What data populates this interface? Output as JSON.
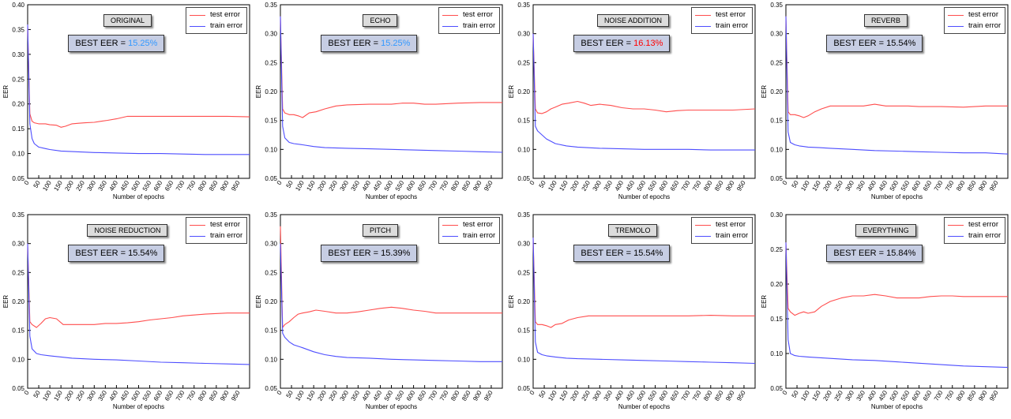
{
  "colors": {
    "test": "#ff4d4d",
    "train": "#4d4dff",
    "highlight_blue": "#3399ff",
    "highlight_red": "#ff0000"
  },
  "legend": {
    "test": "test error",
    "train": "train error"
  },
  "eer_prefix": "BEST EER = ",
  "chart_data": [
    {
      "type": "line",
      "title": "ORIGINAL",
      "best_eer": "15.25%",
      "best_eer_color": "blue",
      "xlabel": "Number of epochs",
      "ylabel": "EER",
      "ylim": [
        0.05,
        0.4
      ],
      "yticks": [
        "0.05",
        "0.10",
        "0.15",
        "0.20",
        "0.25",
        "0.30",
        "0.35",
        "0.40"
      ],
      "xlim": [
        0,
        1000
      ],
      "xticks": [
        0,
        50,
        100,
        150,
        200,
        250,
        300,
        350,
        400,
        450,
        500,
        550,
        600,
        650,
        700,
        750,
        800,
        850,
        900,
        950
      ],
      "series": [
        {
          "name": "test error",
          "x": [
            0,
            10,
            20,
            30,
            50,
            80,
            100,
            130,
            150,
            170,
            200,
            230,
            260,
            300,
            330,
            360,
            400,
            450,
            500,
            600,
            700,
            800,
            900,
            1000
          ],
          "y": [
            0.36,
            0.18,
            0.165,
            0.162,
            0.16,
            0.16,
            0.158,
            0.157,
            0.153,
            0.155,
            0.16,
            0.161,
            0.162,
            0.163,
            0.165,
            0.167,
            0.17,
            0.175,
            0.175,
            0.175,
            0.175,
            0.175,
            0.175,
            0.174
          ]
        },
        {
          "name": "train error",
          "x": [
            0,
            10,
            20,
            30,
            50,
            80,
            100,
            150,
            200,
            300,
            400,
            500,
            600,
            700,
            800,
            900,
            1000
          ],
          "y": [
            0.36,
            0.16,
            0.13,
            0.12,
            0.113,
            0.11,
            0.108,
            0.105,
            0.104,
            0.102,
            0.101,
            0.1,
            0.1,
            0.099,
            0.098,
            0.098,
            0.098
          ]
        }
      ]
    },
    {
      "type": "line",
      "title": "ECHO",
      "best_eer": "15.25%",
      "best_eer_color": "blue",
      "xlabel": "Number of epochs",
      "ylabel": "EER",
      "ylim": [
        0.05,
        0.35
      ],
      "yticks": [
        "0.05",
        "0.10",
        "0.15",
        "0.20",
        "0.25",
        "0.30",
        "0.35"
      ],
      "xlim": [
        0,
        1000
      ],
      "xticks": [
        0,
        50,
        100,
        150,
        200,
        250,
        300,
        350,
        400,
        450,
        500,
        550,
        600,
        650,
        700,
        750,
        800,
        850,
        900,
        950
      ],
      "series": [
        {
          "name": "test error",
          "x": [
            0,
            10,
            20,
            40,
            60,
            80,
            100,
            130,
            160,
            200,
            250,
            300,
            400,
            500,
            550,
            600,
            650,
            700,
            800,
            900,
            1000
          ],
          "y": [
            0.33,
            0.17,
            0.163,
            0.16,
            0.16,
            0.158,
            0.155,
            0.163,
            0.165,
            0.17,
            0.175,
            0.177,
            0.178,
            0.178,
            0.18,
            0.18,
            0.178,
            0.178,
            0.18,
            0.181,
            0.181
          ]
        },
        {
          "name": "train error",
          "x": [
            0,
            10,
            20,
            40,
            60,
            100,
            150,
            200,
            300,
            400,
            500,
            600,
            700,
            800,
            900,
            1000
          ],
          "y": [
            0.33,
            0.14,
            0.12,
            0.112,
            0.11,
            0.108,
            0.105,
            0.103,
            0.102,
            0.101,
            0.1,
            0.099,
            0.098,
            0.097,
            0.096,
            0.095
          ]
        }
      ]
    },
    {
      "type": "line",
      "title": "NOISE ADDITION",
      "best_eer": "16.13%",
      "best_eer_color": "red",
      "xlabel": "Number of epochs",
      "ylabel": "EER",
      "ylim": [
        0.05,
        0.35
      ],
      "yticks": [
        "0.05",
        "0.10",
        "0.15",
        "0.20",
        "0.25",
        "0.30",
        "0.35"
      ],
      "xlim": [
        0,
        1000
      ],
      "xticks": [
        0,
        50,
        100,
        150,
        200,
        250,
        300,
        350,
        400,
        450,
        500,
        550,
        600,
        650,
        700,
        750,
        800,
        850,
        900,
        950
      ],
      "series": [
        {
          "name": "test error",
          "x": [
            0,
            10,
            20,
            40,
            60,
            80,
            100,
            130,
            160,
            200,
            230,
            260,
            300,
            350,
            400,
            450,
            500,
            550,
            600,
            650,
            700,
            800,
            900,
            1000
          ],
          "y": [
            0.3,
            0.17,
            0.163,
            0.162,
            0.165,
            0.17,
            0.173,
            0.178,
            0.18,
            0.183,
            0.18,
            0.176,
            0.178,
            0.176,
            0.172,
            0.17,
            0.17,
            0.168,
            0.165,
            0.167,
            0.168,
            0.168,
            0.168,
            0.17
          ]
        },
        {
          "name": "train error",
          "x": [
            0,
            10,
            20,
            40,
            60,
            100,
            150,
            200,
            300,
            400,
            500,
            600,
            700,
            800,
            900,
            1000
          ],
          "y": [
            0.3,
            0.14,
            0.132,
            0.125,
            0.118,
            0.11,
            0.106,
            0.104,
            0.102,
            0.101,
            0.1,
            0.1,
            0.1,
            0.099,
            0.099,
            0.099
          ]
        }
      ]
    },
    {
      "type": "line",
      "title": "REVERB",
      "best_eer": "15.54%",
      "best_eer_color": "black",
      "xlabel": "Number of epochs",
      "ylabel": "EER",
      "ylim": [
        0.05,
        0.35
      ],
      "yticks": [
        "0.05",
        "0.10",
        "0.15",
        "0.20",
        "0.25",
        "0.30",
        "0.35"
      ],
      "xlim": [
        0,
        1000
      ],
      "xticks": [
        0,
        50,
        100,
        150,
        200,
        250,
        300,
        350,
        400,
        450,
        500,
        550,
        600,
        650,
        700,
        750,
        800,
        850,
        900,
        950
      ],
      "series": [
        {
          "name": "test error",
          "x": [
            0,
            10,
            20,
            40,
            60,
            80,
            100,
            130,
            160,
            200,
            250,
            300,
            350,
            400,
            450,
            500,
            550,
            600,
            700,
            800,
            900,
            1000
          ],
          "y": [
            0.33,
            0.165,
            0.16,
            0.16,
            0.158,
            0.155,
            0.158,
            0.165,
            0.17,
            0.175,
            0.175,
            0.175,
            0.175,
            0.178,
            0.175,
            0.175,
            0.175,
            0.174,
            0.174,
            0.173,
            0.175,
            0.175
          ]
        },
        {
          "name": "train error",
          "x": [
            0,
            10,
            20,
            40,
            60,
            100,
            150,
            200,
            300,
            400,
            500,
            600,
            700,
            800,
            900,
            1000
          ],
          "y": [
            0.33,
            0.13,
            0.112,
            0.108,
            0.106,
            0.104,
            0.103,
            0.102,
            0.1,
            0.098,
            0.097,
            0.096,
            0.095,
            0.094,
            0.094,
            0.092
          ]
        }
      ]
    },
    {
      "type": "line",
      "title": "NOISE REDUCTION",
      "best_eer": "15.54%",
      "best_eer_color": "black",
      "xlabel": "Number of epochs",
      "ylabel": "EER",
      "ylim": [
        0.05,
        0.35
      ],
      "yticks": [
        "0.05",
        "0.10",
        "0.15",
        "0.20",
        "0.25",
        "0.30",
        "0.35"
      ],
      "xlim": [
        0,
        1000
      ],
      "xticks": [
        0,
        50,
        100,
        150,
        200,
        250,
        300,
        350,
        400,
        450,
        500,
        550,
        600,
        650,
        700,
        750,
        800,
        850,
        900,
        950
      ],
      "series": [
        {
          "name": "test error",
          "x": [
            0,
            10,
            20,
            40,
            60,
            80,
            100,
            130,
            160,
            200,
            250,
            300,
            350,
            400,
            450,
            500,
            550,
            600,
            650,
            700,
            800,
            900,
            1000
          ],
          "y": [
            0.3,
            0.165,
            0.16,
            0.155,
            0.162,
            0.17,
            0.172,
            0.17,
            0.16,
            0.16,
            0.16,
            0.16,
            0.162,
            0.162,
            0.163,
            0.165,
            0.168,
            0.17,
            0.172,
            0.175,
            0.178,
            0.18,
            0.18
          ]
        },
        {
          "name": "train error",
          "x": [
            0,
            10,
            20,
            40,
            60,
            100,
            150,
            200,
            300,
            400,
            500,
            600,
            700,
            800,
            900,
            1000
          ],
          "y": [
            0.3,
            0.14,
            0.118,
            0.11,
            0.108,
            0.106,
            0.104,
            0.102,
            0.1,
            0.099,
            0.097,
            0.095,
            0.094,
            0.093,
            0.092,
            0.091
          ]
        }
      ]
    },
    {
      "type": "line",
      "title": "PITCH",
      "best_eer": "15.39%",
      "best_eer_color": "black",
      "xlabel": "Number of epochs",
      "ylabel": "EER",
      "ylim": [
        0.05,
        0.35
      ],
      "yticks": [
        "0.05",
        "0.10",
        "0.15",
        "0.20",
        "0.25",
        "0.30",
        "0.35"
      ],
      "xlim": [
        0,
        1000
      ],
      "xticks": [
        0,
        50,
        100,
        150,
        200,
        250,
        300,
        350,
        400,
        450,
        500,
        550,
        600,
        650,
        700,
        750,
        800,
        850,
        900,
        950
      ],
      "series": [
        {
          "name": "test error",
          "x": [
            0,
            10,
            20,
            40,
            60,
            80,
            100,
            130,
            160,
            200,
            250,
            300,
            350,
            400,
            450,
            500,
            550,
            600,
            650,
            700,
            800,
            900,
            1000
          ],
          "y": [
            0.33,
            0.155,
            0.16,
            0.165,
            0.172,
            0.178,
            0.18,
            0.182,
            0.185,
            0.183,
            0.18,
            0.18,
            0.182,
            0.185,
            0.188,
            0.19,
            0.188,
            0.185,
            0.183,
            0.18,
            0.18,
            0.18,
            0.18
          ]
        },
        {
          "name": "train error",
          "x": [
            0,
            10,
            20,
            40,
            60,
            100,
            150,
            200,
            250,
            300,
            400,
            500,
            600,
            700,
            800,
            900,
            1000
          ],
          "y": [
            0.3,
            0.145,
            0.138,
            0.13,
            0.125,
            0.12,
            0.113,
            0.108,
            0.105,
            0.103,
            0.102,
            0.1,
            0.099,
            0.098,
            0.097,
            0.096,
            0.096
          ]
        }
      ]
    },
    {
      "type": "line",
      "title": "TREMOLO",
      "best_eer": "15.54%",
      "best_eer_color": "black",
      "xlabel": "Number of epochs",
      "ylabel": "EER",
      "ylim": [
        0.05,
        0.35
      ],
      "yticks": [
        "0.05",
        "0.10",
        "0.15",
        "0.20",
        "0.25",
        "0.30",
        "0.35"
      ],
      "xlim": [
        0,
        1000
      ],
      "xticks": [
        0,
        50,
        100,
        150,
        200,
        250,
        300,
        350,
        400,
        450,
        500,
        550,
        600,
        650,
        700,
        750,
        800,
        850,
        900,
        950
      ],
      "series": [
        {
          "name": "test error",
          "x": [
            0,
            10,
            20,
            40,
            60,
            80,
            100,
            130,
            160,
            200,
            250,
            300,
            400,
            500,
            600,
            700,
            800,
            900,
            1000
          ],
          "y": [
            0.31,
            0.165,
            0.16,
            0.16,
            0.158,
            0.155,
            0.16,
            0.162,
            0.168,
            0.172,
            0.175,
            0.175,
            0.175,
            0.175,
            0.175,
            0.175,
            0.176,
            0.175,
            0.175
          ]
        },
        {
          "name": "train error",
          "x": [
            0,
            10,
            20,
            40,
            60,
            100,
            150,
            200,
            300,
            400,
            500,
            600,
            700,
            800,
            900,
            1000
          ],
          "y": [
            0.31,
            0.13,
            0.112,
            0.108,
            0.106,
            0.104,
            0.102,
            0.101,
            0.1,
            0.099,
            0.098,
            0.097,
            0.096,
            0.095,
            0.094,
            0.093
          ]
        }
      ]
    },
    {
      "type": "line",
      "title": "EVERYTHING",
      "best_eer": "15.84%",
      "best_eer_color": "black",
      "xlabel": "Number of epochs",
      "ylabel": "EER",
      "ylim": [
        0.05,
        0.3
      ],
      "yticks": [
        "0.05",
        "0.10",
        "0.15",
        "0.20",
        "0.25",
        "0.30"
      ],
      "xlim": [
        0,
        1000
      ],
      "xticks": [
        0,
        50,
        100,
        150,
        200,
        250,
        300,
        350,
        400,
        450,
        500,
        550,
        600,
        650,
        700,
        750,
        800,
        850,
        900,
        950
      ],
      "series": [
        {
          "name": "test error",
          "x": [
            0,
            10,
            20,
            40,
            60,
            80,
            100,
            130,
            160,
            200,
            250,
            300,
            350,
            400,
            450,
            500,
            550,
            600,
            650,
            700,
            750,
            800,
            900,
            1000
          ],
          "y": [
            0.26,
            0.165,
            0.16,
            0.155,
            0.158,
            0.16,
            0.158,
            0.16,
            0.168,
            0.175,
            0.18,
            0.183,
            0.183,
            0.185,
            0.183,
            0.18,
            0.18,
            0.18,
            0.182,
            0.183,
            0.183,
            0.182,
            0.182,
            0.182
          ]
        },
        {
          "name": "train error",
          "x": [
            0,
            10,
            20,
            40,
            60,
            100,
            150,
            200,
            300,
            400,
            500,
            600,
            700,
            800,
            900,
            1000
          ],
          "y": [
            0.26,
            0.12,
            0.1,
            0.097,
            0.096,
            0.095,
            0.094,
            0.093,
            0.091,
            0.09,
            0.088,
            0.086,
            0.084,
            0.082,
            0.081,
            0.08
          ]
        }
      ]
    }
  ]
}
